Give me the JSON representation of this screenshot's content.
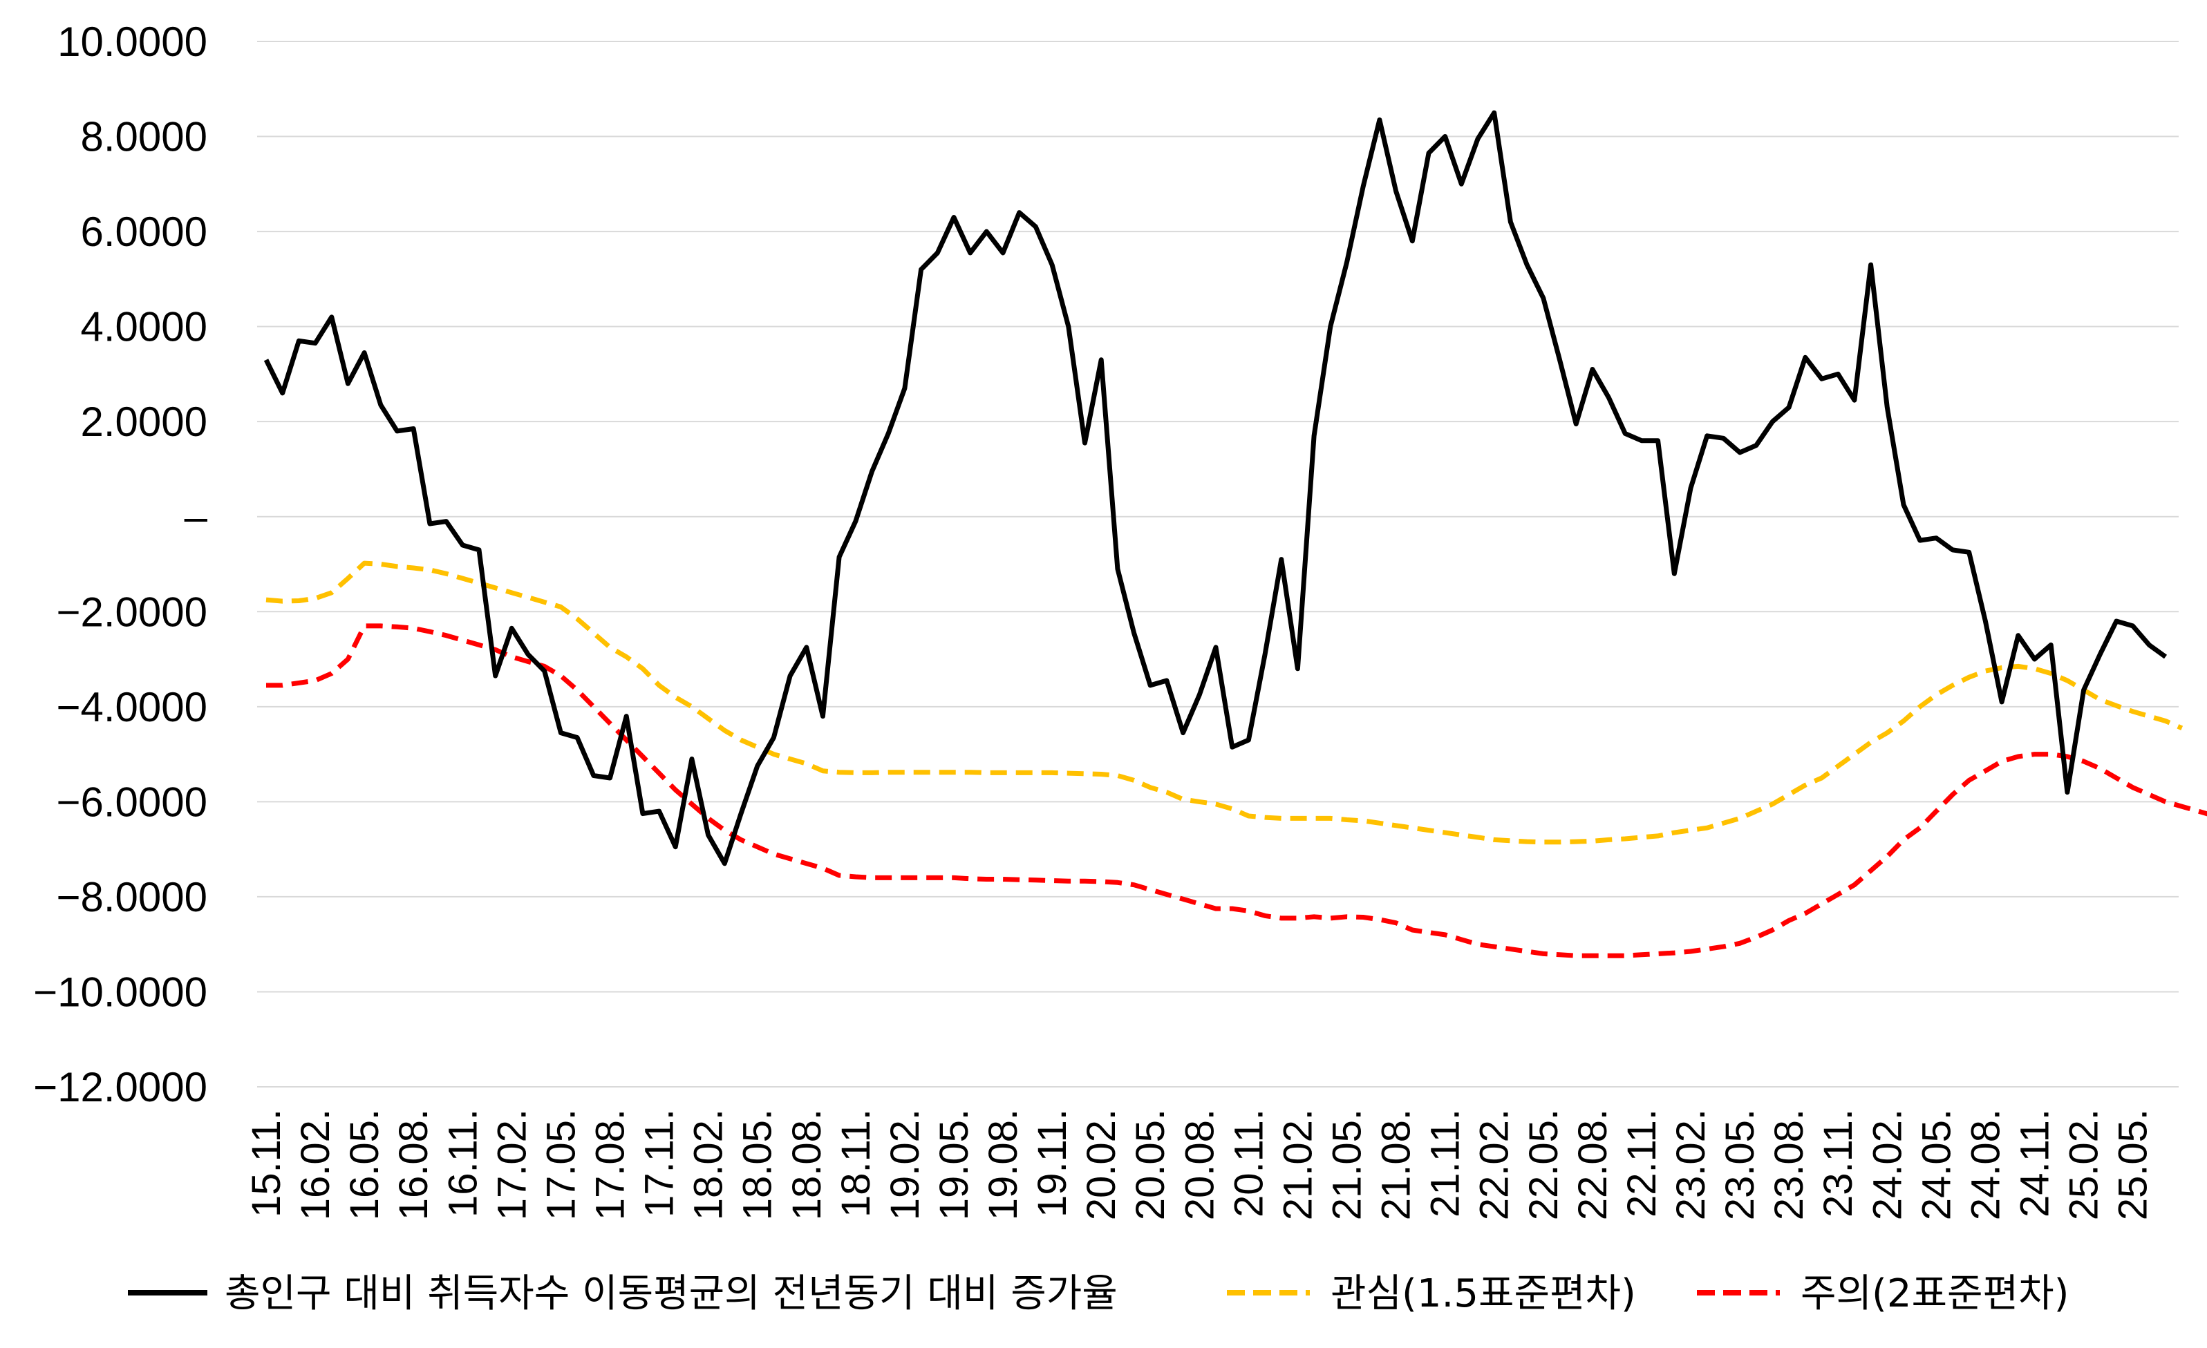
{
  "chart_data": {
    "type": "line",
    "y_ticks": [
      "10.0000",
      "8.0000",
      "6.0000",
      "4.0000",
      "2.0000",
      "–",
      "−2.0000",
      "−4.0000",
      "−6.0000",
      "−8.0000",
      "−10.0000",
      "−12.0000"
    ],
    "ylim": [
      -12,
      10
    ],
    "grid": true,
    "legend_position": "bottom",
    "x_tick_labels": [
      "15.11.",
      "16.02.",
      "16.05.",
      "16.08.",
      "16.11.",
      "17.02.",
      "17.05.",
      "17.08.",
      "17.11.",
      "18.02.",
      "18.05.",
      "18.08.",
      "18.11.",
      "19.02.",
      "19.05.",
      "19.08.",
      "19.11.",
      "20.02.",
      "20.05.",
      "20.08.",
      "20.11.",
      "21.02.",
      "21.05.",
      "21.08.",
      "21.11.",
      "22.02.",
      "22.05.",
      "22.08.",
      "22.11.",
      "23.02.",
      "23.05.",
      "23.08.",
      "23.11.",
      "24.02.",
      "24.05.",
      "24.08.",
      "24.11.",
      "25.02.",
      "25.05."
    ],
    "x_months_start": "15.11.",
    "series": [
      {
        "name": "총인구 대비 취득자수 이동평균의 전년동기 대비 증가율",
        "color": "#000000",
        "style": "solid",
        "values": [
          3.3,
          2.6,
          3.7,
          3.65,
          4.2,
          2.8,
          3.45,
          2.35,
          1.8,
          1.85,
          -0.15,
          -0.1,
          -0.6,
          -0.7,
          -3.35,
          -2.35,
          -2.9,
          -3.25,
          -4.55,
          -4.65,
          -5.45,
          -5.5,
          -4.2,
          -6.25,
          -6.2,
          -6.95,
          -5.1,
          -6.7,
          -7.3,
          -6.25,
          -5.25,
          -4.65,
          -3.35,
          -2.75,
          -4.2,
          -0.85,
          -0.1,
          0.95,
          1.75,
          2.7,
          5.2,
          5.55,
          6.3,
          5.55,
          6.0,
          5.55,
          6.4,
          6.1,
          5.3,
          4.0,
          1.55,
          3.3,
          -1.1,
          -2.45,
          -3.55,
          -3.45,
          -4.55,
          -3.75,
          -2.75,
          -4.85,
          -4.7,
          -2.9,
          -0.9,
          -3.2,
          1.7,
          4.0,
          5.35,
          6.95,
          8.35,
          6.85,
          5.8,
          7.65,
          8.0,
          7.0,
          7.95,
          8.5,
          6.2,
          5.3,
          4.6,
          3.3,
          1.95,
          3.1,
          2.5,
          1.75,
          1.6,
          1.6,
          -1.2,
          0.6,
          1.7,
          1.65,
          1.35,
          1.5,
          2.0,
          2.3,
          3.35,
          2.9,
          3.0,
          2.45,
          5.3,
          2.3,
          0.25,
          -0.5,
          -0.45,
          -0.7,
          -0.75,
          -2.2,
          -3.9,
          -2.5,
          -3.0,
          -2.7,
          -5.8,
          -3.65,
          -2.9,
          -2.2,
          -2.3,
          -2.7,
          -2.95
        ]
      },
      {
        "name": "관심(1.5표준편차)",
        "color": "#ffc000",
        "style": "dashed",
        "values": [
          -1.75,
          -1.78,
          -1.77,
          -1.72,
          -1.6,
          -1.3,
          -0.98,
          -1.0,
          -1.05,
          -1.08,
          -1.12,
          -1.2,
          -1.3,
          -1.4,
          -1.5,
          -1.6,
          -1.7,
          -1.8,
          -1.9,
          -2.15,
          -2.45,
          -2.75,
          -2.95,
          -3.2,
          -3.55,
          -3.8,
          -4.0,
          -4.25,
          -4.5,
          -4.7,
          -4.85,
          -5.0,
          -5.1,
          -5.2,
          -5.35,
          -5.38,
          -5.39,
          -5.39,
          -5.38,
          -5.38,
          -5.38,
          -5.38,
          -5.38,
          -5.38,
          -5.39,
          -5.39,
          -5.39,
          -5.39,
          -5.39,
          -5.4,
          -5.41,
          -5.42,
          -5.45,
          -5.55,
          -5.7,
          -5.8,
          -5.95,
          -6.0,
          -6.05,
          -6.15,
          -6.3,
          -6.33,
          -6.35,
          -6.35,
          -6.35,
          -6.35,
          -6.38,
          -6.4,
          -6.45,
          -6.5,
          -6.55,
          -6.6,
          -6.65,
          -6.7,
          -6.75,
          -6.8,
          -6.82,
          -6.84,
          -6.85,
          -6.85,
          -6.84,
          -6.83,
          -6.8,
          -6.78,
          -6.75,
          -6.72,
          -6.65,
          -6.6,
          -6.55,
          -6.45,
          -6.35,
          -6.2,
          -6.05,
          -5.85,
          -5.65,
          -5.5,
          -5.25,
          -5.0,
          -4.75,
          -4.55,
          -4.3,
          -4.0,
          -3.75,
          -3.55,
          -3.38,
          -3.25,
          -3.18,
          -3.15,
          -3.2,
          -3.3,
          -3.45,
          -3.65,
          -3.85,
          -3.98,
          -4.1,
          -4.2,
          -4.3,
          -4.45
        ]
      },
      {
        "name": "주의(2표준편차)",
        "color": "#ff0000",
        "style": "dashed",
        "values": [
          -3.55,
          -3.55,
          -3.5,
          -3.45,
          -3.3,
          -3.0,
          -2.3,
          -2.3,
          -2.32,
          -2.35,
          -2.42,
          -2.5,
          -2.6,
          -2.7,
          -2.8,
          -2.95,
          -3.05,
          -3.15,
          -3.35,
          -3.65,
          -4.0,
          -4.35,
          -4.7,
          -5.05,
          -5.4,
          -5.75,
          -6.05,
          -6.35,
          -6.6,
          -6.8,
          -6.95,
          -7.1,
          -7.2,
          -7.3,
          -7.4,
          -7.55,
          -7.58,
          -7.6,
          -7.6,
          -7.6,
          -7.6,
          -7.6,
          -7.6,
          -7.62,
          -7.63,
          -7.63,
          -7.64,
          -7.65,
          -7.66,
          -7.67,
          -7.67,
          -7.68,
          -7.7,
          -7.75,
          -7.85,
          -7.95,
          -8.05,
          -8.15,
          -8.25,
          -8.25,
          -8.3,
          -8.4,
          -8.45,
          -8.45,
          -8.42,
          -8.45,
          -8.42,
          -8.43,
          -8.48,
          -8.55,
          -8.7,
          -8.75,
          -8.8,
          -8.9,
          -9.0,
          -9.05,
          -9.1,
          -9.15,
          -9.2,
          -9.22,
          -9.24,
          -9.24,
          -9.24,
          -9.24,
          -9.22,
          -9.2,
          -9.18,
          -9.15,
          -9.1,
          -9.05,
          -8.98,
          -8.85,
          -8.7,
          -8.5,
          -8.35,
          -8.15,
          -7.95,
          -7.75,
          -7.45,
          -7.15,
          -6.8,
          -6.55,
          -6.2,
          -5.85,
          -5.55,
          -5.35,
          -5.15,
          -5.05,
          -5.0,
          -5.0,
          -5.05,
          -5.15,
          -5.3,
          -5.5,
          -5.7,
          -5.85,
          -6.0,
          -6.1,
          -6.2,
          -6.3,
          -6.38
        ]
      }
    ]
  }
}
